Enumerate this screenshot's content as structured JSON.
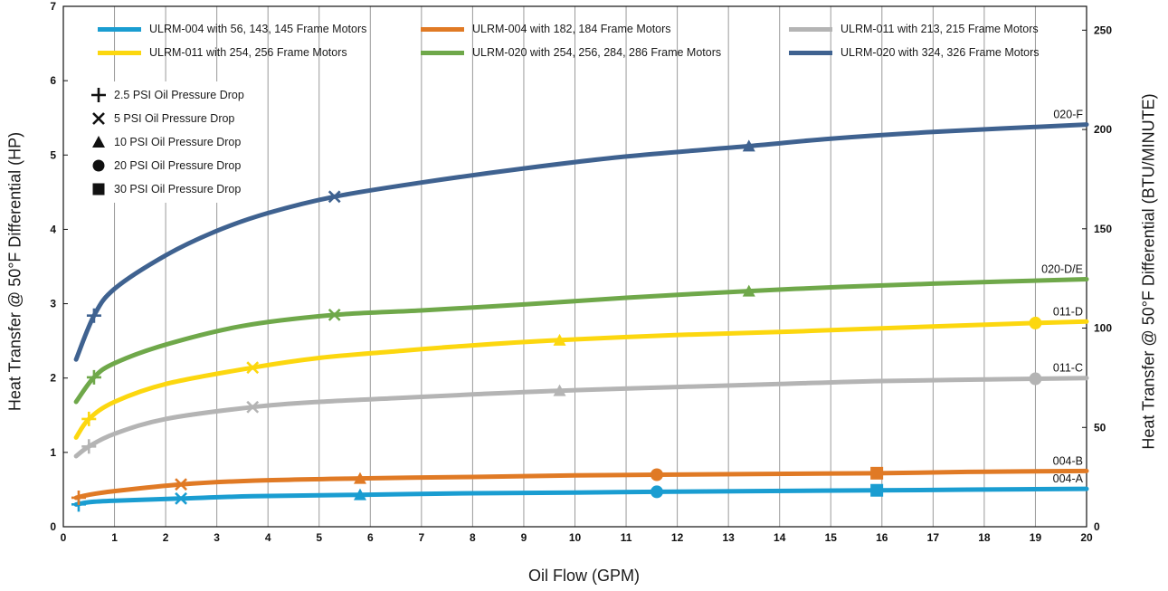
{
  "chart_data": {
    "type": "line",
    "xlabel": "Oil Flow (GPM)",
    "ylabel": "Heat Transfer @ 50°F Differential (HP)",
    "y2label": "Heat Transfer @ 50°F Differential (BTU/MINUTE)",
    "xlim": [
      0,
      20
    ],
    "ylim": [
      0,
      7
    ],
    "y2lim": [
      0,
      262
    ],
    "x_ticks": [
      "0",
      "1",
      "2",
      "3",
      "4",
      "5",
      "6",
      "7",
      "8",
      "9",
      "10",
      "11",
      "12",
      "13",
      "14",
      "15",
      "16",
      "17",
      "18",
      "19",
      "20"
    ],
    "y_ticks": [
      "0",
      "1",
      "2",
      "3",
      "4",
      "5",
      "6",
      "7"
    ],
    "y2_ticks": [
      "0",
      "50",
      "100",
      "150",
      "200",
      "250"
    ],
    "grid": "vertical",
    "legend_position": "top",
    "series": [
      {
        "name": "ULRM-004 with 56, 143, 145 Frame Motors",
        "end_label": "004-A",
        "color": "#1a9dd1",
        "x": [
          0.25,
          0.5,
          1,
          2.3,
          3.7,
          5.8,
          8,
          10,
          11.6,
          13.5,
          15.9,
          18,
          20
        ],
        "y": [
          0.3,
          0.33,
          0.35,
          0.38,
          0.41,
          0.43,
          0.45,
          0.46,
          0.47,
          0.48,
          0.49,
          0.5,
          0.51
        ]
      },
      {
        "name": "ULRM-004 with 182, 184 Frame Motors",
        "end_label": "004-B",
        "color": "#e07a25",
        "x": [
          0.25,
          0.5,
          1,
          2.3,
          3.7,
          5.8,
          8,
          10,
          11.6,
          13.5,
          15.9,
          18,
          20
        ],
        "y": [
          0.39,
          0.43,
          0.48,
          0.57,
          0.62,
          0.65,
          0.67,
          0.69,
          0.7,
          0.71,
          0.72,
          0.74,
          0.75
        ]
      },
      {
        "name": "ULRM-011 with 213, 215 Frame Motors",
        "end_label": "011-C",
        "color": "#b4b4b4",
        "x": [
          0.25,
          0.5,
          1,
          2,
          3.7,
          5,
          6.5,
          8,
          9.7,
          12,
          14,
          16,
          19,
          20
        ],
        "y": [
          0.95,
          1.08,
          1.25,
          1.45,
          1.61,
          1.68,
          1.73,
          1.78,
          1.83,
          1.88,
          1.92,
          1.96,
          1.99,
          2.0
        ]
      },
      {
        "name": "ULRM-011 with 254, 256 Frame Motors",
        "end_label": "011-D",
        "color": "#fcd70f",
        "x": [
          0.25,
          0.5,
          1,
          2,
          3.7,
          5,
          6.5,
          8,
          9.7,
          12,
          14,
          16,
          19,
          20
        ],
        "y": [
          1.2,
          1.45,
          1.68,
          1.92,
          2.14,
          2.27,
          2.36,
          2.44,
          2.51,
          2.58,
          2.62,
          2.67,
          2.74,
          2.76
        ]
      },
      {
        "name": "ULRM-020 with 254, 256, 284, 286 Frame Motors",
        "end_label": "020-D/E",
        "color": "#6fa84a",
        "x": [
          0.25,
          0.6,
          1,
          2,
          3.5,
          5.3,
          7,
          9,
          11,
          13.4,
          15,
          17,
          20
        ],
        "y": [
          1.68,
          2.01,
          2.2,
          2.45,
          2.7,
          2.85,
          2.91,
          2.99,
          3.08,
          3.17,
          3.22,
          3.27,
          3.33
        ]
      },
      {
        "name": "ULRM-020 with 324, 326 Frame Motors",
        "end_label": "020-F",
        "color": "#3f6290",
        "x": [
          0.25,
          0.6,
          1,
          2,
          3,
          4,
          5.3,
          7,
          9,
          11,
          13.4,
          15,
          17,
          20
        ],
        "y": [
          2.25,
          2.84,
          3.2,
          3.65,
          3.98,
          4.22,
          4.44,
          4.63,
          4.82,
          4.98,
          5.12,
          5.22,
          5.31,
          5.41
        ]
      }
    ],
    "markers": [
      {
        "series": 0,
        "symbol": "plus",
        "x": 0.3,
        "y": 0.3
      },
      {
        "series": 0,
        "symbol": "cross",
        "x": 2.3,
        "y": 0.38
      },
      {
        "series": 0,
        "symbol": "triangle",
        "x": 5.8,
        "y": 0.43
      },
      {
        "series": 0,
        "symbol": "circle",
        "x": 11.6,
        "y": 0.47
      },
      {
        "series": 0,
        "symbol": "square",
        "x": 15.9,
        "y": 0.49
      },
      {
        "series": 1,
        "symbol": "plus",
        "x": 0.3,
        "y": 0.39
      },
      {
        "series": 1,
        "symbol": "cross",
        "x": 2.3,
        "y": 0.57
      },
      {
        "series": 1,
        "symbol": "triangle",
        "x": 5.8,
        "y": 0.65
      },
      {
        "series": 1,
        "symbol": "circle",
        "x": 11.6,
        "y": 0.7
      },
      {
        "series": 1,
        "symbol": "square",
        "x": 15.9,
        "y": 0.72
      },
      {
        "series": 2,
        "symbol": "plus",
        "x": 0.5,
        "y": 1.08
      },
      {
        "series": 2,
        "symbol": "cross",
        "x": 3.7,
        "y": 1.61
      },
      {
        "series": 2,
        "symbol": "triangle",
        "x": 9.7,
        "y": 1.83
      },
      {
        "series": 2,
        "symbol": "circle",
        "x": 19,
        "y": 1.99
      },
      {
        "series": 3,
        "symbol": "plus",
        "x": 0.5,
        "y": 1.45
      },
      {
        "series": 3,
        "symbol": "cross",
        "x": 3.7,
        "y": 2.14
      },
      {
        "series": 3,
        "symbol": "triangle",
        "x": 9.7,
        "y": 2.51
      },
      {
        "series": 3,
        "symbol": "circle",
        "x": 19,
        "y": 2.74
      },
      {
        "series": 4,
        "symbol": "plus",
        "x": 0.6,
        "y": 2.01
      },
      {
        "series": 4,
        "symbol": "cross",
        "x": 5.3,
        "y": 2.85
      },
      {
        "series": 4,
        "symbol": "triangle",
        "x": 13.4,
        "y": 3.17
      },
      {
        "series": 5,
        "symbol": "plus",
        "x": 0.6,
        "y": 2.84
      },
      {
        "series": 5,
        "symbol": "cross",
        "x": 5.3,
        "y": 4.44
      },
      {
        "series": 5,
        "symbol": "triangle",
        "x": 13.4,
        "y": 5.12
      }
    ],
    "marker_legend": [
      {
        "symbol": "plus",
        "label": "2.5 PSI Oil Pressure Drop"
      },
      {
        "symbol": "cross",
        "label": "5 PSI Oil Pressure Drop"
      },
      {
        "symbol": "triangle",
        "label": "10 PSI Oil Pressure Drop"
      },
      {
        "symbol": "circle",
        "label": "20 PSI Oil Pressure Drop"
      },
      {
        "symbol": "square",
        "label": "30 PSI Oil Pressure Drop"
      }
    ]
  },
  "icons": [
    "plus-icon",
    "cross-icon",
    "triangle-icon",
    "circle-icon",
    "square-icon"
  ]
}
